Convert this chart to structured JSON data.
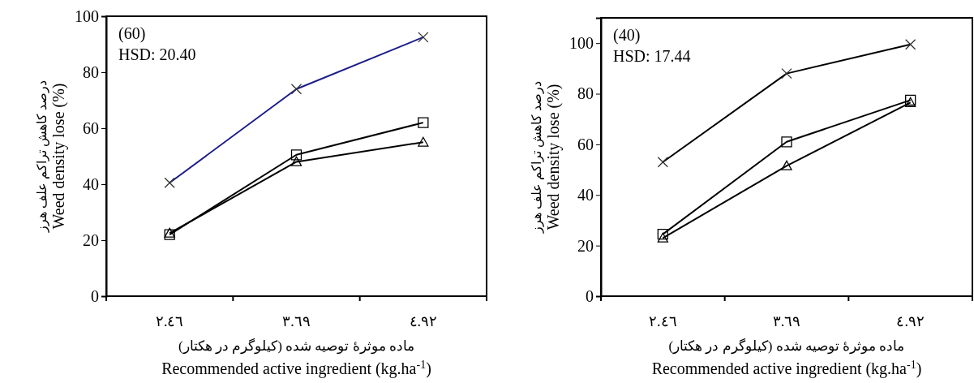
{
  "chart_data": [
    {
      "type": "line",
      "xlabel": "ماده موثرۀ توصیه شده (کیلوگرم در هکتار)\nRecommended active ingredient  (kg.ha$^{-1}$)",
      "ylabel": "درصد کاهش تراکم علف هرز\nWeed density lose (%)",
      "categories": [
        "٢.٤٦",
        "٣.٦٩",
        "٤.٩٢"
      ],
      "ylim": [
        0,
        100
      ],
      "yticks": [
        0,
        20,
        40,
        60,
        80,
        100
      ],
      "annotations": [
        "(60)",
        "HSD: 20.40"
      ],
      "series": [
        {
          "color": "#1c1c8c",
          "marker": "cross",
          "values": [
            40.5,
            74,
            92.5
          ]
        },
        {
          "color": "#000000",
          "marker": "square",
          "values": [
            22,
            50.5,
            62
          ]
        },
        {
          "color": "#000000",
          "marker": "triangle",
          "values": [
            22.5,
            48,
            55
          ]
        }
      ]
    },
    {
      "type": "line",
      "xlabel": "ماده موثرۀ توصیه شده (کیلوگرم در هکتار)\nRecommended active ingredient  (kg.ha$^{-1}$)",
      "ylabel": "درصد کاهش تراکم علف هرز\nWeed density lose (%)",
      "categories": [
        "٢.٤٦",
        "٣.٦٩",
        "٤.٩٢"
      ],
      "ylim": [
        0,
        110
      ],
      "yticks": [
        0,
        20,
        40,
        60,
        80,
        100
      ],
      "annotations": [
        "(40)",
        "HSD: 17.44"
      ],
      "series": [
        {
          "color": "#000000",
          "marker": "cross",
          "values": [
            53,
            88,
            99.5
          ]
        },
        {
          "color": "#000000",
          "marker": "square",
          "values": [
            24.5,
            61,
            77.5
          ]
        },
        {
          "color": "#000000",
          "marker": "triangle",
          "values": [
            23,
            51.5,
            76.5
          ]
        }
      ]
    }
  ]
}
